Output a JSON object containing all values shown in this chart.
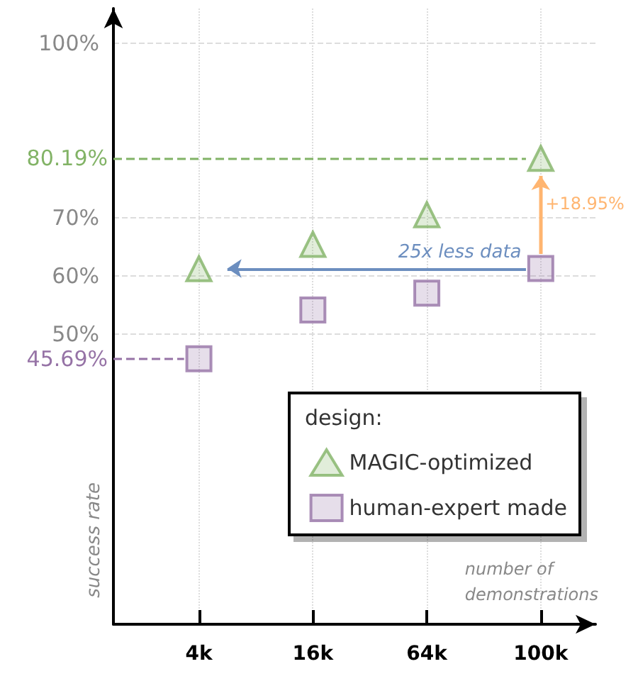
{
  "chart_data": {
    "type": "scatter",
    "xlabel": "number of demonstrations",
    "ylabel": "success rate",
    "legend_title": "design:",
    "categories": [
      "4k",
      "16k",
      "64k",
      "100k"
    ],
    "series": [
      {
        "name": "MAGIC-optimized",
        "color": "#82b366",
        "marker": "triangle",
        "values": [
          61.2,
          65.4,
          70.5,
          80.19
        ]
      },
      {
        "name": "human-expert made",
        "color": "#9673a6",
        "marker": "square",
        "values": [
          45.69,
          54.1,
          57.0,
          61.24
        ]
      }
    ],
    "ylim": [
      0,
      106
    ],
    "yticks": [
      {
        "value": 50,
        "label": "50%"
      },
      {
        "value": 60,
        "label": "60%"
      },
      {
        "value": 70,
        "label": "70%"
      },
      {
        "value": 100,
        "label": "100%"
      }
    ],
    "ref_lines": [
      {
        "axis": "y",
        "value": 80.19,
        "label": "80.19%",
        "color": "#82b366",
        "line_style": "dashed"
      },
      {
        "axis": "y",
        "value": 45.69,
        "label": "45.69%",
        "color": "#9673a6",
        "line_style": "dashed"
      }
    ],
    "annotations": [
      "25x less data",
      {
        "text": "+18.95%",
        "x": "100k",
        "y": 80.19
      }
    ],
    "grid": true,
    "legend": "bottom right"
  }
}
